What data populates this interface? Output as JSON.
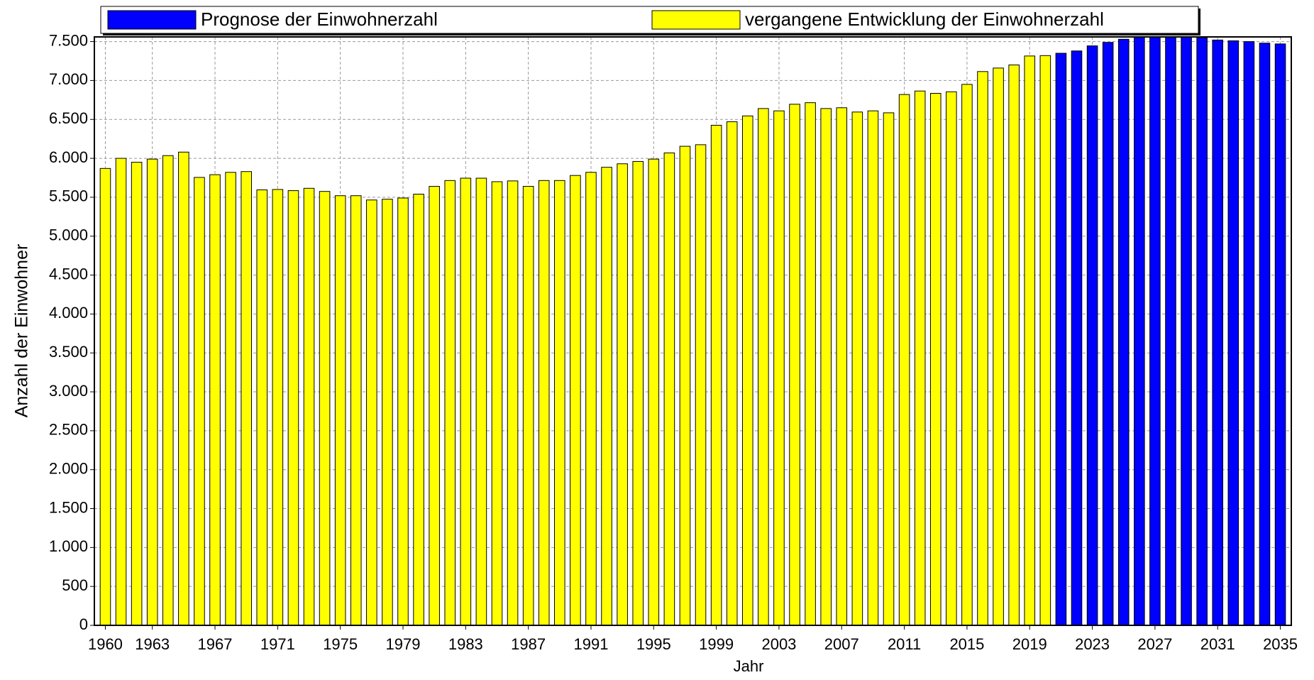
{
  "chart_data": {
    "type": "bar",
    "xlabel": "Jahr",
    "ylabel": "Anzahl der Einwohner",
    "x": [
      1960,
      1961,
      1962,
      1963,
      1964,
      1965,
      1966,
      1967,
      1968,
      1969,
      1970,
      1971,
      1972,
      1973,
      1974,
      1975,
      1976,
      1977,
      1978,
      1979,
      1980,
      1981,
      1982,
      1983,
      1984,
      1985,
      1986,
      1987,
      1988,
      1989,
      1990,
      1991,
      1992,
      1993,
      1994,
      1995,
      1996,
      1997,
      1998,
      1999,
      2000,
      2001,
      2002,
      2003,
      2004,
      2005,
      2006,
      2007,
      2008,
      2009,
      2010,
      2011,
      2012,
      2013,
      2014,
      2015,
      2016,
      2017,
      2018,
      2019,
      2020,
      2021,
      2022,
      2023,
      2024,
      2025,
      2026,
      2027,
      2028,
      2029,
      2030,
      2031,
      2032,
      2033,
      2034,
      2035
    ],
    "series": [
      {
        "name": "Prognose der Einwohnerzahl",
        "color": "#0000ff",
        "values": [
          null,
          null,
          null,
          null,
          null,
          null,
          null,
          null,
          null,
          null,
          null,
          null,
          null,
          null,
          null,
          null,
          null,
          null,
          null,
          null,
          null,
          null,
          null,
          null,
          null,
          null,
          null,
          null,
          null,
          null,
          null,
          null,
          null,
          null,
          null,
          null,
          null,
          null,
          null,
          null,
          null,
          null,
          null,
          null,
          null,
          null,
          null,
          null,
          null,
          null,
          null,
          null,
          null,
          null,
          null,
          null,
          null,
          null,
          null,
          null,
          null,
          7350,
          7380,
          7445,
          7490,
          7530,
          7570,
          7590,
          7590,
          7575,
          7550,
          7520,
          7510,
          7500,
          7480,
          7470
        ]
      },
      {
        "name": "vergangene Entwicklung der Einwohnerzahl",
        "color": "#ffff00",
        "values": [
          5870,
          6000,
          5950,
          5990,
          6035,
          6080,
          5755,
          5790,
          5820,
          5830,
          5595,
          5600,
          5585,
          5615,
          5575,
          5520,
          5520,
          5465,
          5475,
          5490,
          5540,
          5640,
          5715,
          5745,
          5745,
          5700,
          5710,
          5640,
          5715,
          5715,
          5780,
          5820,
          5885,
          5930,
          5960,
          5990,
          6070,
          6155,
          6175,
          6425,
          6470,
          6545,
          6640,
          6610,
          6695,
          6715,
          6640,
          6650,
          6595,
          6610,
          6585,
          6820,
          6865,
          6835,
          6855,
          6950,
          7115,
          7160,
          7200,
          7315,
          7320,
          null,
          null,
          null,
          null,
          null,
          null,
          null,
          null,
          null,
          null,
          null,
          null,
          null,
          null,
          null
        ]
      }
    ],
    "xlim": [
      1959.3,
      2035.7
    ],
    "xticks": [
      1960,
      1963,
      1967,
      1971,
      1975,
      1979,
      1983,
      1987,
      1991,
      1995,
      1999,
      2003,
      2007,
      2011,
      2015,
      2019,
      2023,
      2027,
      2031,
      2035
    ],
    "ylim": [
      0,
      7560
    ],
    "yticks": [
      0,
      500,
      {
        "value": 1000,
        "label": "1.000"
      },
      {
        "value": 1500,
        "label": "1.500"
      },
      {
        "value": 2000,
        "label": "2.000"
      },
      {
        "value": 2500,
        "label": "2.500"
      },
      {
        "value": 3000,
        "label": "3.000"
      },
      {
        "value": 3500,
        "label": "3.500"
      },
      {
        "value": 4000,
        "label": "4.000"
      },
      {
        "value": 4500,
        "label": "4.500"
      },
      {
        "value": 5000,
        "label": "5.000"
      },
      {
        "value": 5500,
        "label": "5.500"
      },
      {
        "value": 6000,
        "label": "6.000"
      },
      {
        "value": 6500,
        "label": "6.500"
      },
      {
        "value": 7000,
        "label": "7.000"
      },
      {
        "value": 7500,
        "label": "7.500"
      }
    ],
    "grid": true,
    "legend": "top"
  }
}
